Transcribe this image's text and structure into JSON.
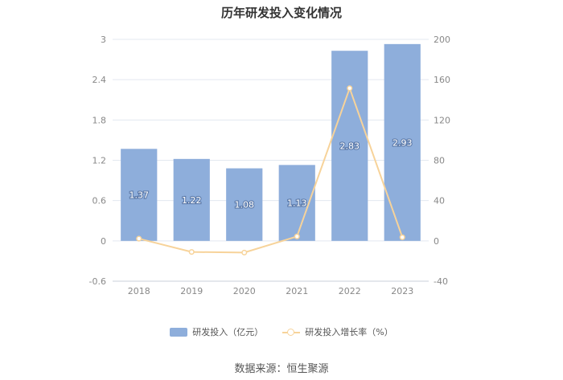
{
  "title": "历年研发投入变化情况",
  "source": "数据来源：恒生聚源",
  "legend": {
    "bar_label": "研发投入（亿元）",
    "line_label": "研发投入增长率（%）"
  },
  "colors": {
    "bar": "#8eaedb",
    "line": "#f7d39a",
    "grid": "#e3e8f0",
    "axis_text": "#888888"
  },
  "chart_data": {
    "type": "bar",
    "categories": [
      "2018",
      "2019",
      "2020",
      "2021",
      "2022",
      "2023"
    ],
    "series": [
      {
        "name": "研发投入（亿元）",
        "type": "bar",
        "axis": "left",
        "values": [
          1.37,
          1.22,
          1.08,
          1.13,
          2.83,
          2.93
        ]
      },
      {
        "name": "研发投入增长率（%）",
        "type": "line",
        "axis": "right",
        "values": [
          2.2,
          -11.0,
          -11.6,
          4.4,
          151.5,
          3.6
        ]
      }
    ],
    "y_left": {
      "min": -0.6,
      "max": 3,
      "ticks": [
        "-0.6",
        "0",
        "0.6",
        "1.2",
        "1.8",
        "2.4",
        "3"
      ]
    },
    "y_right": {
      "min": -40,
      "max": 200,
      "ticks": [
        "-40",
        "0",
        "40",
        "80",
        "120",
        "160",
        "200"
      ]
    },
    "data_labels": [
      "1.37",
      "1.22",
      "1.08",
      "1.13",
      "2.83",
      "2.93"
    ],
    "grid": true,
    "legend_position": "bottom"
  }
}
